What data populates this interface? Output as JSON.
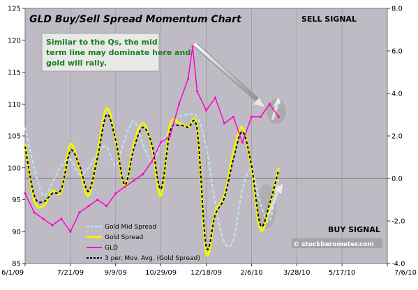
{
  "chart_data": {
    "type": "line",
    "title": "GLD Buy/Sell Spread Momentum Chart",
    "annotation": "Similar to the Qs, the mid term line may dominate here and gold will rally.",
    "sell_signal": "SELL SIGNAL",
    "buy_signal": "BUY SIGNAL",
    "copyright": "© stockbarometer.com",
    "x_tick_labels": [
      "6/1/09",
      "7/21/09",
      "9/9/09",
      "10/29/09",
      "12/18/09",
      "2/6/10",
      "3/28/10",
      "5/17/10",
      "7/6/10"
    ],
    "y_left_ticks": [
      "85",
      "90",
      "95",
      "100",
      "105",
      "110",
      "115",
      "120",
      "125"
    ],
    "y_right_ticks": [
      "-4.0",
      "-2.0",
      "0.0",
      "2.0",
      "4.0",
      "6.0",
      "8.0"
    ],
    "y_left_lim": [
      85,
      125
    ],
    "y_right_lim": [
      -4,
      8
    ],
    "x_lim": [
      "6/1/09",
      "7/6/10"
    ],
    "legend_position": "bottom-left",
    "grid": "vertical",
    "plot_background": "#bfbbc4",
    "colors": {
      "gld": "#ff00cc",
      "gold_spread": "#f4f400",
      "gold_mid_spread": "#bfe9f2",
      "moving_avg": "#000000",
      "note_text": "#1b7f1b"
    },
    "series": [
      {
        "name": "Gold Mid Spread",
        "axis": "right",
        "x": [
          "6/1/09",
          "6/11/09",
          "6/21/09",
          "7/1/09",
          "7/11/09",
          "7/21/09",
          "7/31/09",
          "8/10/09",
          "8/20/09",
          "8/30/09",
          "9/9/09",
          "9/19/09",
          "9/29/09",
          "10/9/09",
          "10/19/09",
          "10/29/09",
          "11/8/09",
          "11/18/09",
          "11/28/09",
          "12/8/09",
          "12/18/09",
          "12/28/09",
          "1/7/10",
          "1/17/10",
          "1/27/10",
          "2/6/10",
          "2/16/10",
          "2/26/10",
          "3/8/10"
        ],
        "values": [
          2.4,
          0.5,
          -0.8,
          -0.2,
          0.6,
          0.9,
          0.2,
          0.5,
          1.2,
          1.5,
          0.6,
          1.8,
          2.7,
          1.6,
          0.8,
          1.6,
          2.3,
          2.9,
          3.0,
          2.9,
          1.5,
          -1.2,
          -3.0,
          -2.9,
          -0.5,
          0.4,
          -1.2,
          -2.0,
          0.0
        ]
      },
      {
        "name": "Gold  Spread",
        "axis": "right",
        "x": [
          "6/1/09",
          "6/11/09",
          "6/21/09",
          "7/1/09",
          "7/11/09",
          "7/21/09",
          "7/31/09",
          "8/10/09",
          "8/20/09",
          "8/30/09",
          "9/9/09",
          "9/19/09",
          "9/29/09",
          "10/9/09",
          "10/19/09",
          "10/29/09",
          "11/8/09",
          "11/18/09",
          "11/28/09",
          "12/8/09",
          "12/18/09",
          "12/28/09",
          "1/7/10",
          "1/17/10",
          "1/27/10",
          "2/6/10",
          "2/16/10",
          "2/26/10",
          "3/8/10"
        ],
        "values": [
          1.6,
          -1.0,
          -1.3,
          -0.6,
          -0.6,
          1.6,
          0.5,
          -0.8,
          1.2,
          3.3,
          1.8,
          -0.4,
          1.6,
          2.6,
          1.5,
          -0.8,
          2.5,
          2.6,
          2.4,
          2.4,
          -3.5,
          -1.6,
          -0.8,
          1.2,
          2.4,
          0.5,
          -2.4,
          -1.3,
          0.5
        ]
      },
      {
        "name": "GLD",
        "axis": "left",
        "x": [
          "6/1/09",
          "6/11/09",
          "6/21/09",
          "7/1/09",
          "7/11/09",
          "7/21/09",
          "7/31/09",
          "8/10/09",
          "8/20/09",
          "8/30/09",
          "9/9/09",
          "9/19/09",
          "9/29/09",
          "10/9/09",
          "10/19/09",
          "10/29/09",
          "11/8/09",
          "11/18/09",
          "11/28/09",
          "12/3/09",
          "12/8/09",
          "12/18/09",
          "12/28/09",
          "1/7/10",
          "1/17/10",
          "1/27/10",
          "2/6/10",
          "2/16/10",
          "2/26/10",
          "3/8/10"
        ],
        "values": [
          96,
          93,
          92,
          91,
          92,
          90,
          93,
          94,
          95,
          94,
          96,
          97,
          98,
          99,
          101,
          104,
          105,
          110,
          114,
          119,
          112,
          109,
          111,
          107,
          108,
          104,
          108,
          108,
          110,
          108
        ]
      },
      {
        "name": "3 per. Mov. Avg. (Gold  Spread)",
        "axis": "right",
        "x": [
          "6/1/09",
          "6/11/09",
          "6/21/09",
          "7/1/09",
          "7/11/09",
          "7/21/09",
          "7/31/09",
          "8/10/09",
          "8/20/09",
          "8/30/09",
          "9/9/09",
          "9/19/09",
          "9/29/09",
          "10/9/09",
          "10/19/09",
          "10/29/09",
          "11/8/09",
          "11/18/09",
          "11/28/09",
          "12/8/09",
          "12/18/09",
          "12/28/09",
          "1/7/10",
          "1/17/10",
          "1/27/10",
          "2/6/10",
          "2/16/10",
          "2/26/10",
          "3/8/10"
        ],
        "values": [
          1.5,
          -0.8,
          -1.1,
          -0.7,
          -0.5,
          1.3,
          0.6,
          -0.6,
          1.0,
          3.0,
          1.8,
          -0.3,
          1.4,
          2.4,
          1.6,
          -0.5,
          2.2,
          2.5,
          2.4,
          2.3,
          -3.2,
          -1.7,
          -0.9,
          0.9,
          2.2,
          0.6,
          -2.2,
          -1.2,
          0.4
        ]
      }
    ]
  }
}
